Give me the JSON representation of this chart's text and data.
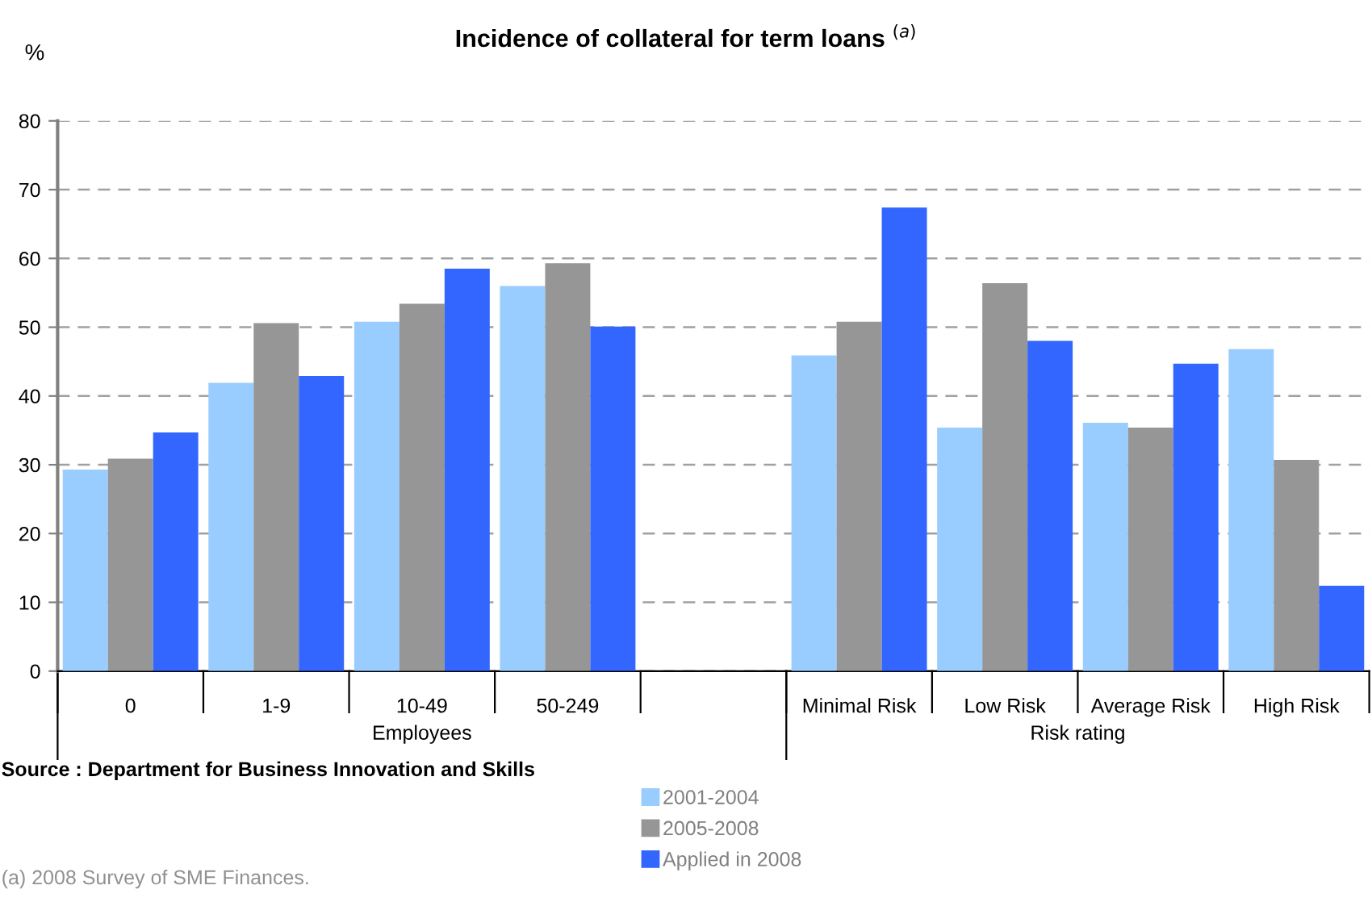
{
  "chart_data": {
    "type": "bar",
    "title": "Incidence of collateral for term loans $^{(a)}$",
    "ylabel": "%",
    "categories": [
      "0",
      "1-9",
      "10-49",
      "50-249",
      null,
      "Minimal Risk",
      "Low Risk",
      "Average Risk",
      "High Risk"
    ],
    "series": [
      {
        "name": "2001-2004",
        "color": "#99ccff",
        "values": [
          29.3,
          41.9,
          50.8,
          56.0,
          null,
          45.9,
          35.4,
          36.1,
          46.8
        ]
      },
      {
        "name": "2005-2008",
        "color": "#969696",
        "values": [
          30.9,
          50.6,
          53.4,
          59.3,
          null,
          50.8,
          56.4,
          35.4,
          30.7
        ]
      },
      {
        "name": "Applied in 2008",
        "color": "#3366ff",
        "values": [
          34.7,
          42.9,
          58.5,
          50.1,
          null,
          67.4,
          48.0,
          44.7,
          12.4
        ]
      }
    ],
    "ylim": [
      0,
      80
    ],
    "yticks": [
      0,
      10,
      20,
      30,
      40,
      50,
      60,
      70,
      80
    ],
    "grid": "y",
    "legend": "bottom",
    "annotations": [
      "Employees",
      "Risk rating",
      "Source : Department for Business Innovation and Skills",
      "(a) 2008 Survey of SME Finances."
    ]
  }
}
